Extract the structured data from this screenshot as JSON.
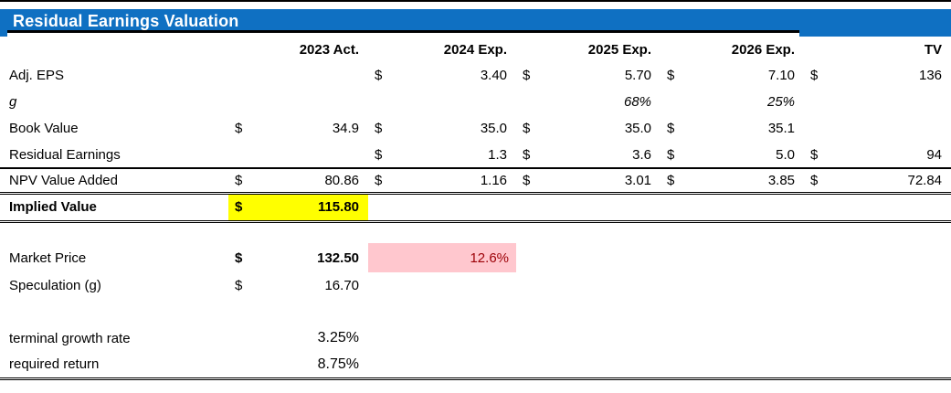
{
  "title": "Residual Earnings Valuation",
  "colors": {
    "title_bar_blue": "#0F70C2",
    "highlight_yellow": "#FFFF00",
    "highlight_pink": "#FFC7CE",
    "pink_cell_text": "#9C0006",
    "text": "#000000"
  },
  "table": {
    "column_headers": [
      "2023 Act.",
      "2024 Exp.",
      "2025 Exp.",
      "2026 Exp.",
      "TV"
    ],
    "rows": [
      {
        "id": "adj-eps",
        "label": "Adj. EPS",
        "cells": [
          {},
          {
            "d": "$",
            "v": "3.40"
          },
          {
            "d": "$",
            "v": "5.70"
          },
          {
            "d": "$",
            "v": "7.10"
          },
          {
            "d": "$",
            "v": "136"
          }
        ]
      },
      {
        "id": "g",
        "label": "g",
        "label_italic": true,
        "cells": [
          {},
          {},
          {
            "v": "68%",
            "italic": true
          },
          {
            "v": "25%",
            "italic": true
          },
          {}
        ]
      },
      {
        "id": "book-value",
        "label": "Book Value",
        "cells": [
          {
            "d": "$",
            "v": "34.9"
          },
          {
            "d": "$",
            "v": "35.0"
          },
          {
            "d": "$",
            "v": "35.0"
          },
          {
            "d": "$",
            "v": "35.1"
          },
          {}
        ]
      },
      {
        "id": "residual-earnings",
        "label": "Residual Earnings",
        "cells": [
          {},
          {
            "d": "$",
            "v": "1.3"
          },
          {
            "d": "$",
            "v": "3.6"
          },
          {
            "d": "$",
            "v": "5.0"
          },
          {
            "d": "$",
            "v": "94"
          }
        ]
      },
      {
        "id": "npv-value-added",
        "label": "NPV Value Added",
        "cells": [
          {
            "d": "$",
            "v": "80.86"
          },
          {
            "d": "$",
            "v": "1.16"
          },
          {
            "d": "$",
            "v": "3.01"
          },
          {
            "d": "$",
            "v": "3.85"
          },
          {
            "d": "$",
            "v": "72.84"
          }
        ]
      },
      {
        "id": "implied-value",
        "label": "Implied Value",
        "label_bold": true,
        "cells": [
          {
            "d": "$",
            "v": "115.80",
            "bold": true,
            "fill": "yellow"
          },
          {},
          {},
          {},
          {}
        ]
      },
      {
        "id": "spacer-1",
        "spacer": true
      },
      {
        "id": "market-price",
        "label": "Market Price",
        "cells": [
          {
            "d": "$",
            "v": "132.50",
            "bold": true
          },
          {
            "v": "12.6%",
            "fill": "pink",
            "merged": true
          },
          {},
          {},
          {}
        ]
      },
      {
        "id": "speculation-g",
        "label": "Speculation (g)",
        "cells": [
          {
            "d": "$",
            "v": "16.70"
          },
          {},
          {},
          {},
          {}
        ]
      },
      {
        "id": "spacer-2",
        "spacer": true
      },
      {
        "id": "terminal-growth-rate",
        "label": "terminal growth rate",
        "cells": [
          {
            "v": "3.25%",
            "big": true
          },
          {},
          {},
          {},
          {}
        ]
      },
      {
        "id": "required-return",
        "label": "required return",
        "cells": [
          {
            "v": "8.75%",
            "big": true
          },
          {},
          {},
          {},
          {}
        ]
      }
    ]
  }
}
